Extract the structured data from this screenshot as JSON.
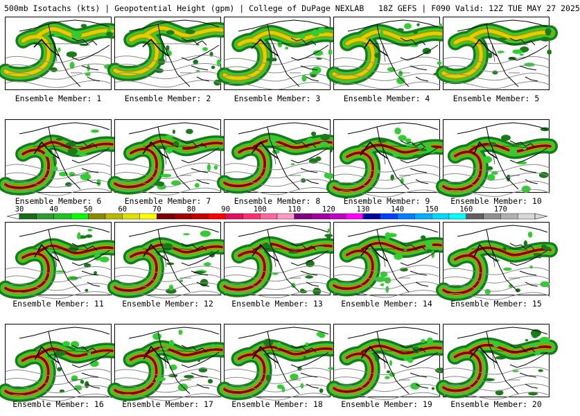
{
  "header": {
    "title": "500mb Isotachs (kts) | Geopotential Height (gpm) | College of DuPage NEXLAB   18Z GEFS | F090 Valid: 12Z TUE MAY 27 2025"
  },
  "members": [
    {
      "label": "Ensemble Member: 1"
    },
    {
      "label": "Ensemble Member: 2"
    },
    {
      "label": "Ensemble Member: 3"
    },
    {
      "label": "Ensemble Member: 4"
    },
    {
      "label": "Ensemble Member: 5"
    },
    {
      "label": "Ensemble Member: 6"
    },
    {
      "label": "Ensemble Member: 7"
    },
    {
      "label": "Ensemble Member: 8"
    },
    {
      "label": "Ensemble Member: 9"
    },
    {
      "label": "Ensemble Member: 10"
    },
    {
      "label": "Ensemble Member: 11"
    },
    {
      "label": "Ensemble Member: 12"
    },
    {
      "label": "Ensemble Member: 13"
    },
    {
      "label": "Ensemble Member: 14"
    },
    {
      "label": "Ensemble Member: 15"
    },
    {
      "label": "Ensemble Member: 16"
    },
    {
      "label": "Ensemble Member: 17"
    },
    {
      "label": "Ensemble Member: 18"
    },
    {
      "label": "Ensemble Member: 19"
    },
    {
      "label": "Ensemble Member: 20"
    }
  ],
  "colorbar": {
    "tick_labels": [
      "30",
      "40",
      "50",
      "60",
      "70",
      "80",
      "90",
      "100",
      "110",
      "120",
      "130",
      "140",
      "150",
      "160",
      "170"
    ],
    "colors": [
      "#1a6b1a",
      "#2f9a2f",
      "#22c022",
      "#00ff00",
      "#8a8a00",
      "#b8b800",
      "#e0e000",
      "#ffff00",
      "#7a0000",
      "#a00000",
      "#c40000",
      "#ff0000",
      "#e01060",
      "#ff3070",
      "#ff66a0",
      "#ff99c0",
      "#800080",
      "#a000a0",
      "#c000c0",
      "#ff00ff",
      "#0000a0",
      "#0040ff",
      "#0080ff",
      "#00b0ff",
      "#00d8ff",
      "#00ffff",
      "#606060",
      "#909090",
      "#b0b0b0",
      "#d8d8d8"
    ]
  },
  "map_colors": {
    "jet_green_dark": "#1a7a1a",
    "jet_green": "#33cc33",
    "jet_olive": "#9a9a00",
    "jet_yellow": "#e0d000",
    "jet_red": "#8b0000",
    "coast": "#000000",
    "height_contour": "#8a8a8a"
  }
}
